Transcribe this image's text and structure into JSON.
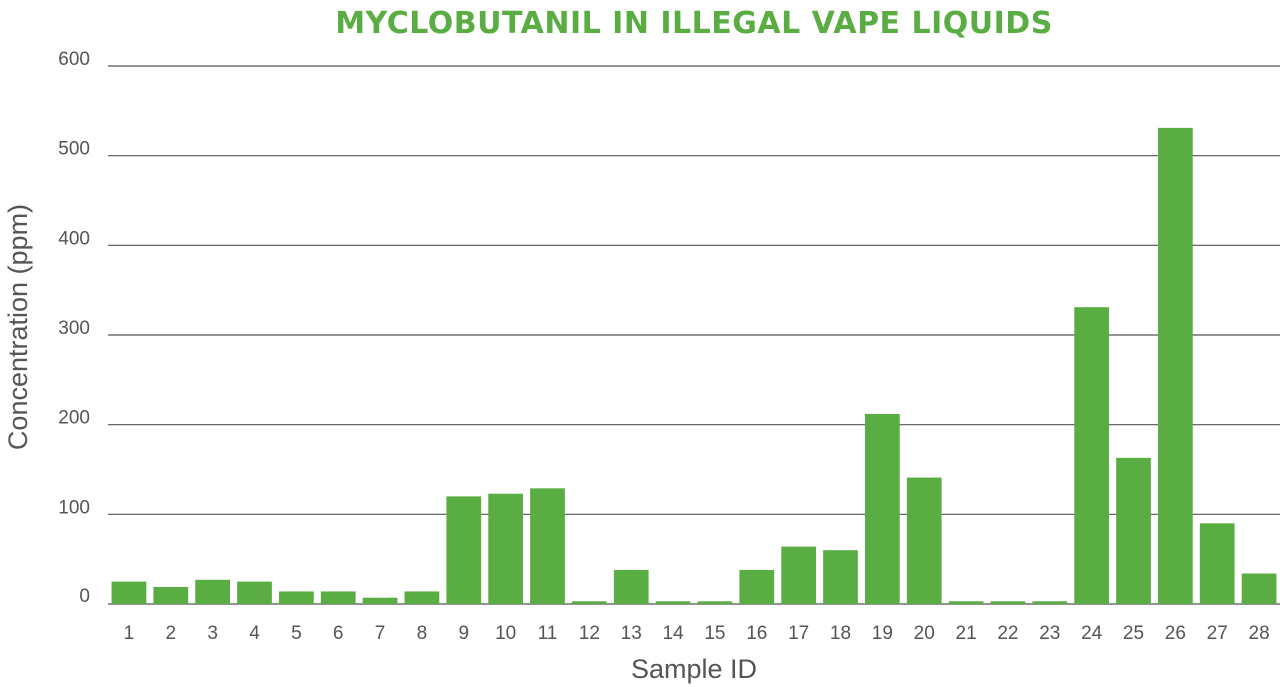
{
  "chart_data": {
    "type": "bar",
    "title": "MYCLOBUTANIL IN ILLEGAL VAPE LIQUIDS",
    "xlabel": "Sample ID",
    "ylabel": "Concentration (ppm)",
    "ylim": [
      0,
      600
    ],
    "yticks": [
      0,
      100,
      200,
      300,
      400,
      500,
      600
    ],
    "grid": true,
    "categories": [
      "1",
      "2",
      "3",
      "4",
      "5",
      "6",
      "7",
      "8",
      "9",
      "10",
      "11",
      "12",
      "13",
      "14",
      "15",
      "16",
      "17",
      "18",
      "19",
      "20",
      "21",
      "22",
      "23",
      "24",
      "25",
      "26",
      "27",
      "28"
    ],
    "values": [
      25,
      19,
      27,
      25,
      14,
      14,
      7,
      14,
      120,
      123,
      129,
      3,
      38,
      3,
      3,
      38,
      64,
      60,
      212,
      141,
      3,
      3,
      3,
      331,
      163,
      531,
      90,
      34
    ],
    "bar_color": "#5aad42",
    "grid_color": "#555555",
    "text_color": "#555555",
    "title_color": "#5aad42"
  }
}
